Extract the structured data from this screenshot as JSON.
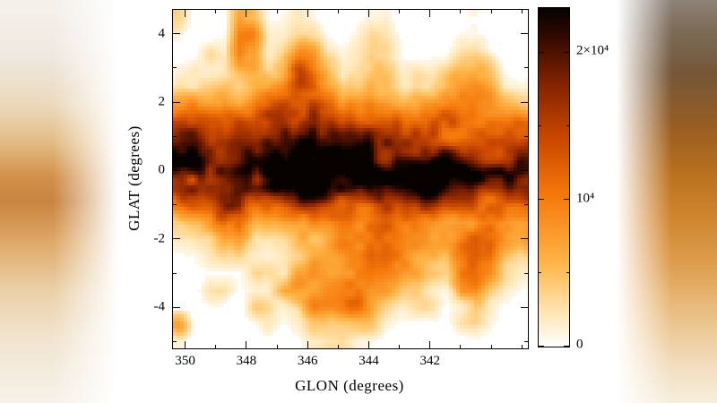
{
  "chart_data": {
    "type": "heatmap",
    "title": "",
    "xlabel": "GLON (degrees)",
    "ylabel": "GLAT (degrees)",
    "x_ticks": [
      "350",
      "348",
      "346",
      "344",
      "342"
    ],
    "x_tick_values": [
      350,
      348,
      346,
      344,
      342
    ],
    "x_range": [
      350.4,
      338.8
    ],
    "y_ticks": [
      "4",
      "2",
      "0",
      "-2",
      "-4"
    ],
    "y_tick_values": [
      4,
      2,
      0,
      -2,
      -4
    ],
    "y_range": [
      -5.2,
      4.7
    ],
    "grid": false,
    "legend": "none",
    "colorbar": {
      "position": "right",
      "orientation": "vertical",
      "vmin": 0,
      "vmax": 23000,
      "tick_labels": [
        "2×10⁴",
        "10⁴",
        "0"
      ],
      "tick_values": [
        20000,
        10000,
        0
      ],
      "minor_tick_values": [
        5000,
        15000
      ]
    },
    "colormap_stops": [
      {
        "t": 0.0,
        "c": "#ffffff"
      },
      {
        "t": 0.1,
        "c": "#ffe6b4"
      },
      {
        "t": 0.25,
        "c": "#ffb446"
      },
      {
        "t": 0.45,
        "c": "#f5780a"
      },
      {
        "t": 0.62,
        "c": "#c84600"
      },
      {
        "t": 0.78,
        "c": "#822300"
      },
      {
        "t": 0.9,
        "c": "#3c0c00"
      },
      {
        "t": 1.0,
        "c": "#050200"
      }
    ],
    "intensity_grid": {
      "note": "Coarse relative intensity (0-1) read from the map. Rows top (GLAT=+4.7) to bottom (GLAT=-5.2); cols left (GLON=350.4) to right (GLON=338.8). Dark galactic-plane ridge at GLAT=0, plume rising near GLON=346, patchy emission below the plane toward GLON 345-341.",
      "rows": 20,
      "cols": 24,
      "values": [
        [
          0.2,
          0.05,
          0.03,
          0.04,
          0.22,
          0.18,
          0.05,
          0.06,
          0.12,
          0.08,
          0.04,
          0.03,
          0.05,
          0.08,
          0.1,
          0.04,
          0.03,
          0.05,
          0.04,
          0.06,
          0.08,
          0.04,
          0.03,
          0.02
        ],
        [
          0.1,
          0.06,
          0.04,
          0.06,
          0.28,
          0.3,
          0.08,
          0.1,
          0.18,
          0.16,
          0.06,
          0.05,
          0.08,
          0.14,
          0.1,
          0.05,
          0.04,
          0.06,
          0.08,
          0.1,
          0.1,
          0.05,
          0.03,
          0.03
        ],
        [
          0.06,
          0.08,
          0.15,
          0.08,
          0.3,
          0.28,
          0.1,
          0.18,
          0.34,
          0.32,
          0.12,
          0.08,
          0.12,
          0.18,
          0.16,
          0.08,
          0.06,
          0.08,
          0.12,
          0.18,
          0.18,
          0.08,
          0.04,
          0.04
        ],
        [
          0.08,
          0.15,
          0.1,
          0.12,
          0.22,
          0.25,
          0.15,
          0.3,
          0.48,
          0.45,
          0.28,
          0.12,
          0.16,
          0.22,
          0.22,
          0.1,
          0.15,
          0.12,
          0.18,
          0.28,
          0.28,
          0.25,
          0.06,
          0.05
        ],
        [
          0.12,
          0.1,
          0.18,
          0.2,
          0.18,
          0.22,
          0.3,
          0.38,
          0.55,
          0.52,
          0.35,
          0.2,
          0.22,
          0.3,
          0.28,
          0.15,
          0.2,
          0.18,
          0.3,
          0.35,
          0.35,
          0.3,
          0.1,
          0.08
        ],
        [
          0.28,
          0.3,
          0.22,
          0.3,
          0.25,
          0.35,
          0.5,
          0.58,
          0.65,
          0.6,
          0.45,
          0.35,
          0.4,
          0.42,
          0.38,
          0.3,
          0.38,
          0.4,
          0.42,
          0.4,
          0.38,
          0.32,
          0.22,
          0.18
        ],
        [
          0.5,
          0.52,
          0.45,
          0.42,
          0.45,
          0.48,
          0.62,
          0.7,
          0.72,
          0.68,
          0.55,
          0.5,
          0.52,
          0.52,
          0.5,
          0.48,
          0.5,
          0.52,
          0.5,
          0.48,
          0.45,
          0.42,
          0.4,
          0.38
        ],
        [
          0.6,
          0.62,
          0.58,
          0.52,
          0.55,
          0.6,
          0.72,
          0.8,
          0.8,
          0.75,
          0.65,
          0.6,
          0.62,
          0.6,
          0.58,
          0.55,
          0.58,
          0.58,
          0.55,
          0.52,
          0.52,
          0.5,
          0.48,
          0.45
        ],
        [
          0.72,
          0.75,
          0.7,
          0.68,
          0.72,
          0.75,
          0.82,
          0.88,
          0.88,
          0.85,
          0.8,
          0.75,
          0.78,
          0.78,
          0.75,
          0.72,
          0.72,
          0.7,
          0.68,
          0.65,
          0.65,
          0.62,
          0.6,
          0.58
        ],
        [
          0.88,
          0.9,
          0.86,
          0.85,
          0.88,
          0.92,
          0.98,
          1.0,
          1.0,
          0.98,
          0.95,
          0.92,
          0.95,
          0.95,
          0.92,
          0.9,
          0.88,
          0.86,
          0.88,
          0.85,
          0.85,
          0.82,
          0.82,
          0.8
        ],
        [
          0.78,
          0.8,
          0.78,
          0.8,
          0.82,
          0.85,
          0.86,
          0.88,
          0.85,
          0.82,
          0.82,
          0.8,
          0.8,
          0.78,
          0.78,
          0.76,
          0.76,
          0.75,
          0.72,
          0.7,
          0.7,
          0.68,
          0.66,
          0.65
        ],
        [
          0.5,
          0.52,
          0.55,
          0.72,
          0.75,
          0.55,
          0.52,
          0.55,
          0.6,
          0.6,
          0.55,
          0.52,
          0.52,
          0.5,
          0.52,
          0.5,
          0.5,
          0.5,
          0.48,
          0.48,
          0.5,
          0.48,
          0.45,
          0.42
        ],
        [
          0.28,
          0.3,
          0.32,
          0.52,
          0.55,
          0.3,
          0.28,
          0.3,
          0.38,
          0.4,
          0.38,
          0.42,
          0.45,
          0.42,
          0.4,
          0.38,
          0.38,
          0.35,
          0.32,
          0.32,
          0.3,
          0.3,
          0.28,
          0.26
        ],
        [
          0.12,
          0.15,
          0.15,
          0.3,
          0.32,
          0.15,
          0.12,
          0.15,
          0.28,
          0.3,
          0.42,
          0.45,
          0.45,
          0.42,
          0.4,
          0.38,
          0.35,
          0.3,
          0.28,
          0.3,
          0.35,
          0.35,
          0.32,
          0.28
        ],
        [
          0.06,
          0.08,
          0.1,
          0.15,
          0.15,
          0.1,
          0.08,
          0.1,
          0.2,
          0.38,
          0.4,
          0.42,
          0.4,
          0.45,
          0.45,
          0.4,
          0.3,
          0.28,
          0.25,
          0.38,
          0.4,
          0.35,
          0.2,
          0.15
        ],
        [
          0.04,
          0.05,
          0.06,
          0.06,
          0.05,
          0.15,
          0.15,
          0.1,
          0.32,
          0.35,
          0.35,
          0.4,
          0.4,
          0.38,
          0.35,
          0.32,
          0.3,
          0.2,
          0.18,
          0.35,
          0.35,
          0.3,
          0.14,
          0.1
        ],
        [
          0.03,
          0.04,
          0.14,
          0.15,
          0.06,
          0.08,
          0.1,
          0.28,
          0.3,
          0.3,
          0.42,
          0.45,
          0.42,
          0.3,
          0.28,
          0.2,
          0.18,
          0.1,
          0.08,
          0.28,
          0.3,
          0.15,
          0.08,
          0.06
        ],
        [
          0.03,
          0.03,
          0.05,
          0.06,
          0.05,
          0.18,
          0.2,
          0.1,
          0.15,
          0.38,
          0.4,
          0.4,
          0.38,
          0.25,
          0.15,
          0.1,
          0.15,
          0.14,
          0.06,
          0.1,
          0.2,
          0.1,
          0.05,
          0.04
        ],
        [
          0.45,
          0.05,
          0.03,
          0.04,
          0.04,
          0.06,
          0.15,
          0.08,
          0.1,
          0.28,
          0.3,
          0.28,
          0.2,
          0.18,
          0.08,
          0.06,
          0.08,
          0.06,
          0.05,
          0.14,
          0.15,
          0.08,
          0.04,
          0.03
        ],
        [
          0.1,
          0.04,
          0.02,
          0.02,
          0.03,
          0.03,
          0.05,
          0.04,
          0.06,
          0.12,
          0.15,
          0.14,
          0.08,
          0.06,
          0.04,
          0.03,
          0.04,
          0.04,
          0.03,
          0.05,
          0.06,
          0.04,
          0.03,
          0.02
        ]
      ]
    }
  }
}
